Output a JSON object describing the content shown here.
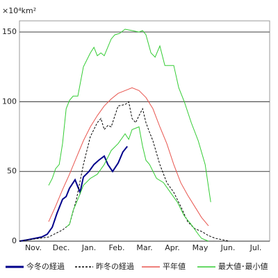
{
  "chart_data": {
    "type": "line",
    "y_unit": "×10⁴km²",
    "xlim": [
      0,
      9
    ],
    "ylim": [
      0,
      158
    ],
    "grid": true,
    "xticks": [
      {
        "value": 0.5,
        "label": "Nov."
      },
      {
        "value": 1.5,
        "label": "Dec."
      },
      {
        "value": 2.5,
        "label": "Jan."
      },
      {
        "value": 3.5,
        "label": "Feb."
      },
      {
        "value": 4.5,
        "label": "Mar."
      },
      {
        "value": 5.5,
        "label": "Apr."
      },
      {
        "value": 6.5,
        "label": "May"
      },
      {
        "value": 7.5,
        "label": "Jun."
      },
      {
        "value": 8.5,
        "label": "Jul."
      }
    ],
    "yticks": [
      0,
      50,
      100,
      150
    ],
    "series": [
      {
        "name": "今冬の経過",
        "color": "#00008b",
        "style": "solid",
        "width": 2,
        "x": [
          0,
          0.3,
          0.8,
          1.0,
          1.18,
          1.35,
          1.55,
          1.68,
          1.8,
          2.0,
          2.18,
          2.3,
          2.5,
          2.68,
          2.85,
          3.05,
          3.18,
          3.35,
          3.55,
          3.72,
          3.88
        ],
        "values": [
          0,
          1,
          3,
          5,
          10,
          20,
          30,
          32,
          38,
          44,
          35,
          46,
          50,
          55,
          58,
          61,
          55,
          50,
          56,
          64,
          68
        ]
      },
      {
        "name": "昨冬の経過",
        "color": "#000000",
        "style": "dashed",
        "width": 1,
        "x": [
          0,
          1.05,
          1.55,
          1.8,
          2.05,
          2.3,
          2.55,
          2.8,
          2.93,
          3.05,
          3.18,
          3.3,
          3.55,
          3.8,
          3.93,
          4.05,
          4.18,
          4.3,
          4.43,
          4.55,
          4.68,
          4.8,
          5.05,
          5.3,
          5.55,
          5.8,
          6.05,
          6.3,
          6.55,
          6.8,
          7.05,
          7.3,
          7.55
        ],
        "values": [
          0,
          3,
          8,
          12,
          30,
          55,
          75,
          85,
          88,
          80,
          83,
          82,
          97,
          98,
          100,
          88,
          85,
          90,
          95,
          85,
          78,
          72,
          55,
          42,
          35,
          25,
          14,
          9,
          7,
          4,
          2,
          1,
          0
        ]
      },
      {
        "name": "平年値",
        "color": "#e8554e",
        "style": "solid",
        "width": 1,
        "x": [
          1.05,
          1.3,
          1.55,
          1.8,
          2.05,
          2.3,
          2.55,
          2.8,
          3.05,
          3.3,
          3.55,
          3.8,
          4.05,
          4.3,
          4.55,
          4.8,
          5.05,
          5.3,
          5.55,
          5.8,
          6.05,
          6.3,
          6.55,
          6.8
        ],
        "values": [
          14,
          25,
          37,
          48,
          60,
          72,
          82,
          90,
          97,
          102,
          106,
          108,
          110,
          108,
          103,
          95,
          82,
          70,
          55,
          42,
          33,
          25,
          17,
          11
        ]
      },
      {
        "name": "最大値･最小値",
        "color": "#33cc33",
        "style": "solid",
        "width": 1,
        "x": [
          1.05,
          1.18,
          1.3,
          1.43,
          1.55,
          1.68,
          1.8,
          1.93,
          2.1,
          2.3,
          2.55,
          2.68,
          2.8,
          2.93,
          3.05,
          3.3,
          3.43,
          3.6,
          3.8,
          4.05,
          4.3,
          4.43,
          4.55,
          4.73,
          4.88,
          5.05,
          5.23,
          5.55,
          5.73,
          5.93,
          6.18,
          6.43,
          6.68,
          6.88
        ],
        "values": [
          40,
          45,
          52,
          55,
          70,
          95,
          101,
          104,
          104,
          125,
          135,
          139,
          133,
          135,
          133,
          145,
          148,
          149,
          152,
          151,
          150,
          151,
          148,
          135,
          132,
          140,
          126,
          126,
          110,
          100,
          85,
          72,
          55,
          28
        ]
      },
      {
        "color": "#33cc33",
        "style": "solid",
        "width": 1,
        "x": [
          1.68,
          1.8,
          1.93,
          2.1,
          2.3,
          2.55,
          2.8,
          3.05,
          3.3,
          3.55,
          3.8,
          3.93,
          4.05,
          4.3,
          4.43,
          4.55,
          4.68,
          4.93,
          5.18,
          5.43,
          5.68,
          5.93,
          6.18,
          6.43,
          6.55,
          6.8
        ],
        "values": [
          10,
          12,
          22,
          30,
          40,
          45,
          48,
          55,
          65,
          70,
          77,
          73,
          80,
          82,
          68,
          58,
          55,
          45,
          42,
          35,
          28,
          18,
          12,
          5,
          2,
          0
        ]
      }
    ]
  }
}
